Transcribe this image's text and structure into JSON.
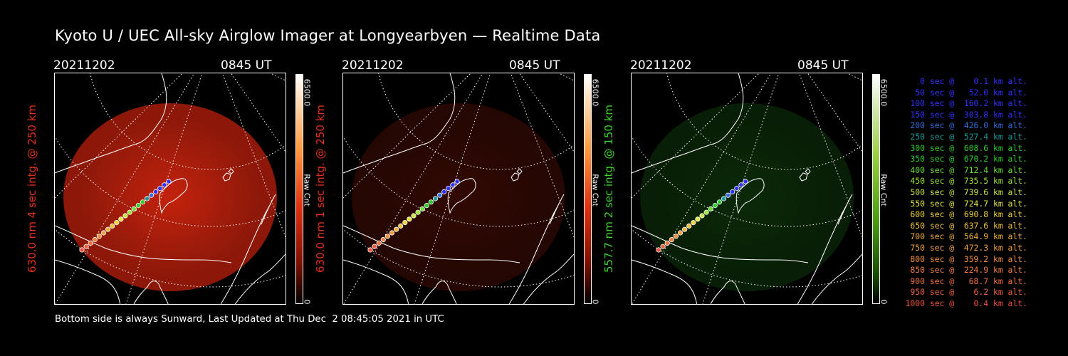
{
  "title": "Kyoto U / UEC All-sky Airglow Imager at Longyearbyen — Realtime Data",
  "footer": "Bottom side is always Sunward, Last Updated at Thu Dec  2 08:45:05 2021 in UTC",
  "colors": {
    "red_label": "#e0311a",
    "green_label": "#40d030",
    "background": "#000000"
  },
  "panels": [
    {
      "date": "20211202",
      "time": "0845 UT",
      "ylabel": "630.0 nm 4 sec intg. @ 250 km",
      "cbar_max": "6500.0",
      "cbar_min": "0",
      "cbar_unit": "Raw Cnt",
      "hue": "red",
      "label_color": "#e0311a",
      "brightness": 0.85
    },
    {
      "date": "20211202",
      "time": "0845 UT",
      "ylabel": "630.0 nm 1 sec intg. @ 250 km",
      "cbar_max": "6500.0",
      "cbar_min": "0",
      "cbar_unit": "Raw Cnt",
      "hue": "red",
      "label_color": "#e0311a",
      "brightness": 0.22
    },
    {
      "date": "20211202",
      "time": "0845 UT",
      "ylabel": "557.7 nm 2 sec intg. @ 150 km",
      "cbar_max": "6500.0",
      "cbar_min": "0",
      "cbar_unit": "Raw Cnt",
      "hue": "green",
      "label_color": "#40d030",
      "brightness": 0.28
    }
  ],
  "legend": [
    {
      "text": "   0 sec @    0.1 km alt.",
      "color": "#3232ff"
    },
    {
      "text": "  50 sec @   52.0 km alt.",
      "color": "#3232ff"
    },
    {
      "text": " 100 sec @  160.2 km alt.",
      "color": "#3232ff"
    },
    {
      "text": " 150 sec @  303.8 km alt.",
      "color": "#3232ff"
    },
    {
      "text": " 200 sec @  426.0 km alt.",
      "color": "#2f6fe0"
    },
    {
      "text": " 250 sec @  527.4 km alt.",
      "color": "#1a9a9a"
    },
    {
      "text": " 300 sec @  608.6 km alt.",
      "color": "#2ccc2c"
    },
    {
      "text": " 350 sec @  670.2 km alt.",
      "color": "#2ccc2c"
    },
    {
      "text": " 400 sec @  712.4 km alt.",
      "color": "#66e033"
    },
    {
      "text": " 450 sec @  735.5 km alt.",
      "color": "#99e633"
    },
    {
      "text": " 500 sec @  739.6 km alt.",
      "color": "#c6e640"
    },
    {
      "text": " 550 sec @  724.7 km alt.",
      "color": "#e6e640"
    },
    {
      "text": " 600 sec @  690.8 km alt.",
      "color": "#f0d43a"
    },
    {
      "text": " 650 sec @  637.6 km alt.",
      "color": "#f0c040"
    },
    {
      "text": " 700 sec @  564.9 km alt.",
      "color": "#f0b040"
    },
    {
      "text": " 750 sec @  472.3 km alt.",
      "color": "#f0a040"
    },
    {
      "text": " 800 sec @  359.2 km alt.",
      "color": "#f09040"
    },
    {
      "text": " 850 sec @  224.9 km alt.",
      "color": "#f08040"
    },
    {
      "text": " 900 sec @   68.7 km alt.",
      "color": "#f07040"
    },
    {
      "text": " 950 sec @    6.2 km alt.",
      "color": "#f06040"
    },
    {
      "text": "1000 sec @    0.4 km alt.",
      "color": "#f05040"
    }
  ]
}
